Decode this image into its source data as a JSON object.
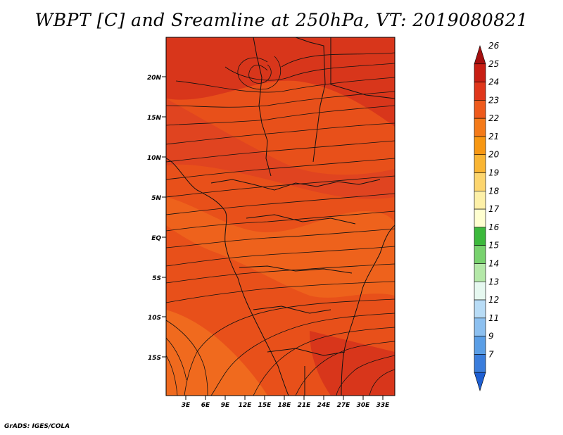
{
  "title": "WBPT [C] and Sreamline at 250hPa, VT: 2019080821",
  "credit": "GrADS: IGES/COLA",
  "map": {
    "lat_range": [
      -21,
      25
    ],
    "lon_range": [
      0,
      35
    ],
    "lat_ticks": [
      "20N",
      "15N",
      "10N",
      "5N",
      "EQ",
      "5S",
      "10S",
      "15S"
    ],
    "lon_ticks": [
      "3E",
      "6E",
      "9E",
      "12E",
      "15E",
      "18E",
      "21E",
      "24E",
      "27E",
      "30E",
      "33E"
    ],
    "field_color_dominant": "#E8501A",
    "field_color_warm": "#D8361B",
    "field_color_cool": "#F06A1E"
  },
  "colorbar": {
    "levels": [
      "26",
      "25",
      "24",
      "23",
      "22",
      "21",
      "20",
      "19",
      "18",
      "17",
      "16",
      "15",
      "14",
      "13",
      "12",
      "11",
      "9",
      "7"
    ],
    "colors": [
      "#A50F0F",
      "#C81E14",
      "#E0361B",
      "#EE5A1C",
      "#F47A19",
      "#F79712",
      "#F9B533",
      "#FCD56E",
      "#FDF0A8",
      "#FFFFD0",
      "#3CB93C",
      "#78D26E",
      "#B4E8A8",
      "#E6F8F0",
      "#B8DCF6",
      "#8CC0F0",
      "#5A9EE6",
      "#3A7DDC",
      "#1E5FD2"
    ]
  }
}
